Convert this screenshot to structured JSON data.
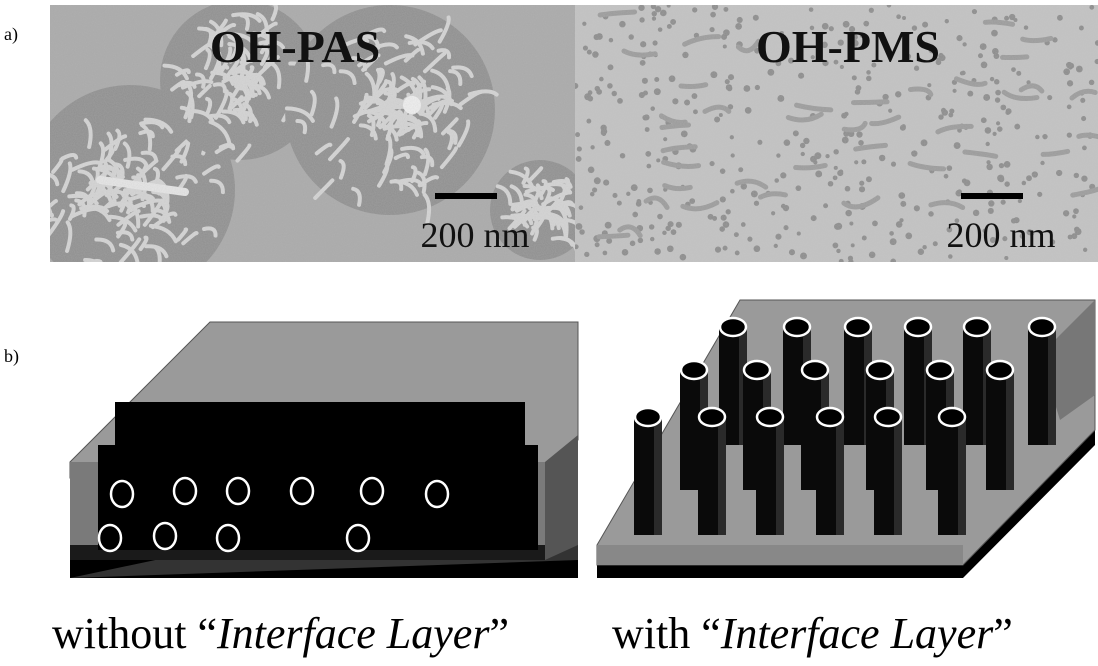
{
  "panel_a": {
    "label": "a)",
    "images": [
      {
        "title": "OH-PAS",
        "scale_bar": "200 nm"
      },
      {
        "title": "OH-PMS",
        "scale_bar": "200 nm"
      }
    ]
  },
  "panel_b": {
    "label": "b)",
    "captions": [
      {
        "prefix": "without “",
        "emphasis": "Interface Layer",
        "suffix": "”"
      },
      {
        "prefix": "with “",
        "emphasis": "Interface Layer",
        "suffix": "”"
      }
    ]
  }
}
